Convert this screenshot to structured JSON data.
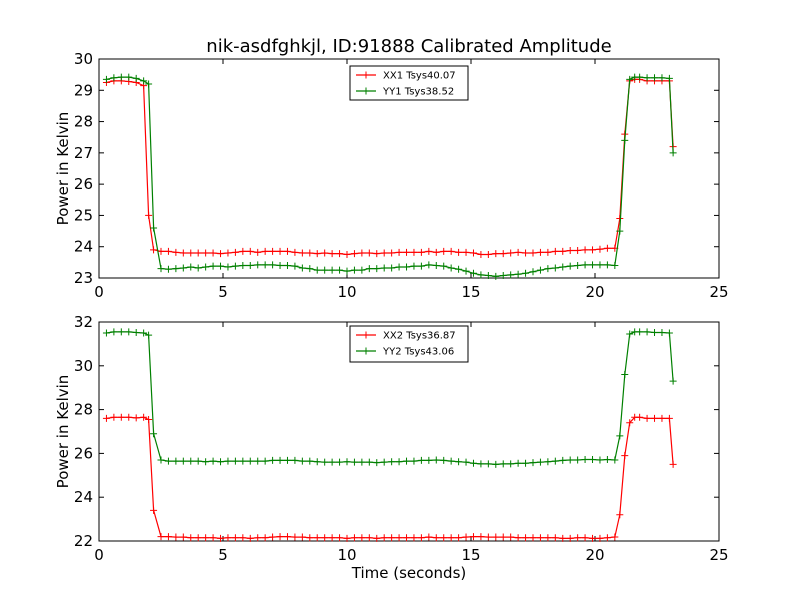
{
  "chart_data": [
    {
      "type": "line",
      "title": "nik-asdfghkjl, ID:91888 Calibrated Amplitude",
      "xlabel": "",
      "ylabel": "Power in Kelvin",
      "xlim": [
        0,
        25
      ],
      "ylim": [
        23,
        30
      ],
      "x_ticks": [
        "0",
        "5",
        "10",
        "15",
        "20",
        "25"
      ],
      "y_ticks": [
        "23",
        "24",
        "25",
        "26",
        "27",
        "28",
        "29",
        "30"
      ],
      "grid": false,
      "legend_position": "top-center",
      "x": [
        0.3,
        0.6,
        0.9,
        1.2,
        1.5,
        1.8,
        2.0,
        2.2,
        2.5,
        2.8,
        3.1,
        3.4,
        3.7,
        4.0,
        4.3,
        4.6,
        4.9,
        5.2,
        5.5,
        5.8,
        6.1,
        6.4,
        6.7,
        7.0,
        7.3,
        7.6,
        7.9,
        8.2,
        8.5,
        8.8,
        9.1,
        9.4,
        9.7,
        10.0,
        10.3,
        10.6,
        10.9,
        11.2,
        11.5,
        11.8,
        12.1,
        12.4,
        12.7,
        13.0,
        13.3,
        13.6,
        13.9,
        14.2,
        14.5,
        14.8,
        15.1,
        15.4,
        15.7,
        16.0,
        16.3,
        16.6,
        16.9,
        17.2,
        17.5,
        17.8,
        18.1,
        18.4,
        18.7,
        19.0,
        19.3,
        19.6,
        19.9,
        20.2,
        20.5,
        20.8,
        21.0,
        21.2,
        21.4,
        21.6,
        21.8,
        22.1,
        22.4,
        22.7,
        23.0,
        23.15
      ],
      "series": [
        {
          "name": "XX1 Tsys40.07",
          "color": "#ff0000",
          "values": [
            29.25,
            29.3,
            29.3,
            29.28,
            29.25,
            29.15,
            25.0,
            23.9,
            23.85,
            23.85,
            23.82,
            23.8,
            23.8,
            23.8,
            23.8,
            23.8,
            23.78,
            23.8,
            23.82,
            23.85,
            23.85,
            23.82,
            23.85,
            23.85,
            23.85,
            23.85,
            23.82,
            23.8,
            23.8,
            23.78,
            23.8,
            23.78,
            23.78,
            23.75,
            23.78,
            23.8,
            23.8,
            23.78,
            23.8,
            23.8,
            23.82,
            23.82,
            23.82,
            23.82,
            23.85,
            23.82,
            23.85,
            23.85,
            23.82,
            23.82,
            23.8,
            23.75,
            23.75,
            23.78,
            23.78,
            23.8,
            23.82,
            23.8,
            23.8,
            23.82,
            23.82,
            23.85,
            23.85,
            23.88,
            23.88,
            23.9,
            23.9,
            23.92,
            23.95,
            23.95,
            24.9,
            27.6,
            29.3,
            29.35,
            29.35,
            29.3,
            29.3,
            29.3,
            29.3,
            27.2
          ]
        },
        {
          "name": "YY1 Tsys38.52",
          "color": "#008000",
          "values": [
            29.35,
            29.4,
            29.42,
            29.42,
            29.38,
            29.3,
            29.2,
            24.6,
            23.3,
            23.28,
            23.3,
            23.32,
            23.35,
            23.32,
            23.35,
            23.38,
            23.38,
            23.35,
            23.38,
            23.4,
            23.4,
            23.42,
            23.42,
            23.42,
            23.4,
            23.4,
            23.38,
            23.32,
            23.3,
            23.25,
            23.25,
            23.25,
            23.25,
            23.22,
            23.25,
            23.25,
            23.3,
            23.3,
            23.32,
            23.32,
            23.35,
            23.35,
            23.38,
            23.38,
            23.42,
            23.4,
            23.38,
            23.32,
            23.28,
            23.22,
            23.15,
            23.1,
            23.08,
            23.05,
            23.08,
            23.1,
            23.12,
            23.15,
            23.2,
            23.25,
            23.3,
            23.32,
            23.35,
            23.38,
            23.4,
            23.42,
            23.42,
            23.42,
            23.42,
            23.4,
            24.5,
            27.4,
            29.35,
            29.42,
            29.42,
            29.4,
            29.4,
            29.4,
            29.38,
            27.0
          ]
        }
      ]
    },
    {
      "type": "line",
      "title": "",
      "xlabel": "Time (seconds)",
      "ylabel": "Power in Kelvin",
      "xlim": [
        0,
        25
      ],
      "ylim": [
        22,
        32
      ],
      "x_ticks": [
        "0",
        "5",
        "10",
        "15",
        "20",
        "25"
      ],
      "y_ticks": [
        "22",
        "24",
        "26",
        "28",
        "30",
        "32"
      ],
      "grid": false,
      "legend_position": "top-center",
      "x": [
        0.3,
        0.6,
        0.9,
        1.2,
        1.5,
        1.8,
        2.0,
        2.2,
        2.5,
        2.8,
        3.1,
        3.4,
        3.7,
        4.0,
        4.3,
        4.6,
        4.9,
        5.2,
        5.5,
        5.8,
        6.1,
        6.4,
        6.7,
        7.0,
        7.3,
        7.6,
        7.9,
        8.2,
        8.5,
        8.8,
        9.1,
        9.4,
        9.7,
        10.0,
        10.3,
        10.6,
        10.9,
        11.2,
        11.5,
        11.8,
        12.1,
        12.4,
        12.7,
        13.0,
        13.3,
        13.6,
        13.9,
        14.2,
        14.5,
        14.8,
        15.1,
        15.4,
        15.7,
        16.0,
        16.3,
        16.6,
        16.9,
        17.2,
        17.5,
        17.8,
        18.1,
        18.4,
        18.7,
        19.0,
        19.3,
        19.6,
        19.9,
        20.2,
        20.5,
        20.8,
        21.0,
        21.2,
        21.4,
        21.6,
        21.8,
        22.1,
        22.4,
        22.7,
        23.0,
        23.15
      ],
      "series": [
        {
          "name": "XX2 Tsys36.87",
          "color": "#ff0000",
          "values": [
            27.6,
            27.65,
            27.65,
            27.65,
            27.62,
            27.65,
            27.55,
            23.4,
            22.2,
            22.2,
            22.18,
            22.18,
            22.15,
            22.15,
            22.15,
            22.15,
            22.12,
            22.15,
            22.15,
            22.15,
            22.12,
            22.15,
            22.15,
            22.18,
            22.2,
            22.2,
            22.18,
            22.18,
            22.15,
            22.15,
            22.15,
            22.15,
            22.15,
            22.12,
            22.15,
            22.15,
            22.15,
            22.12,
            22.15,
            22.15,
            22.15,
            22.15,
            22.15,
            22.15,
            22.18,
            22.15,
            22.15,
            22.15,
            22.15,
            22.18,
            22.2,
            22.2,
            22.18,
            22.18,
            22.18,
            22.18,
            22.15,
            22.15,
            22.15,
            22.15,
            22.15,
            22.15,
            22.12,
            22.12,
            22.15,
            22.15,
            22.12,
            22.12,
            22.15,
            22.18,
            23.2,
            25.9,
            27.4,
            27.65,
            27.65,
            27.6,
            27.6,
            27.6,
            27.6,
            25.5
          ]
        },
        {
          "name": "YY2 Tsys43.06",
          "color": "#008000",
          "values": [
            31.5,
            31.55,
            31.55,
            31.55,
            31.52,
            31.5,
            31.4,
            26.9,
            25.7,
            25.65,
            25.65,
            25.65,
            25.65,
            25.65,
            25.62,
            25.65,
            25.62,
            25.65,
            25.65,
            25.65,
            25.65,
            25.65,
            25.65,
            25.68,
            25.68,
            25.68,
            25.68,
            25.65,
            25.65,
            25.62,
            25.6,
            25.6,
            25.6,
            25.62,
            25.6,
            25.6,
            25.6,
            25.58,
            25.6,
            25.62,
            25.62,
            25.65,
            25.65,
            25.68,
            25.68,
            25.7,
            25.68,
            25.65,
            25.62,
            25.6,
            25.55,
            25.52,
            25.52,
            25.5,
            25.52,
            25.52,
            25.55,
            25.55,
            25.58,
            25.6,
            25.62,
            25.65,
            25.68,
            25.7,
            25.7,
            25.72,
            25.72,
            25.7,
            25.72,
            25.7,
            26.8,
            29.6,
            31.45,
            31.55,
            31.55,
            31.55,
            31.52,
            31.52,
            31.5,
            29.3
          ]
        }
      ]
    }
  ]
}
